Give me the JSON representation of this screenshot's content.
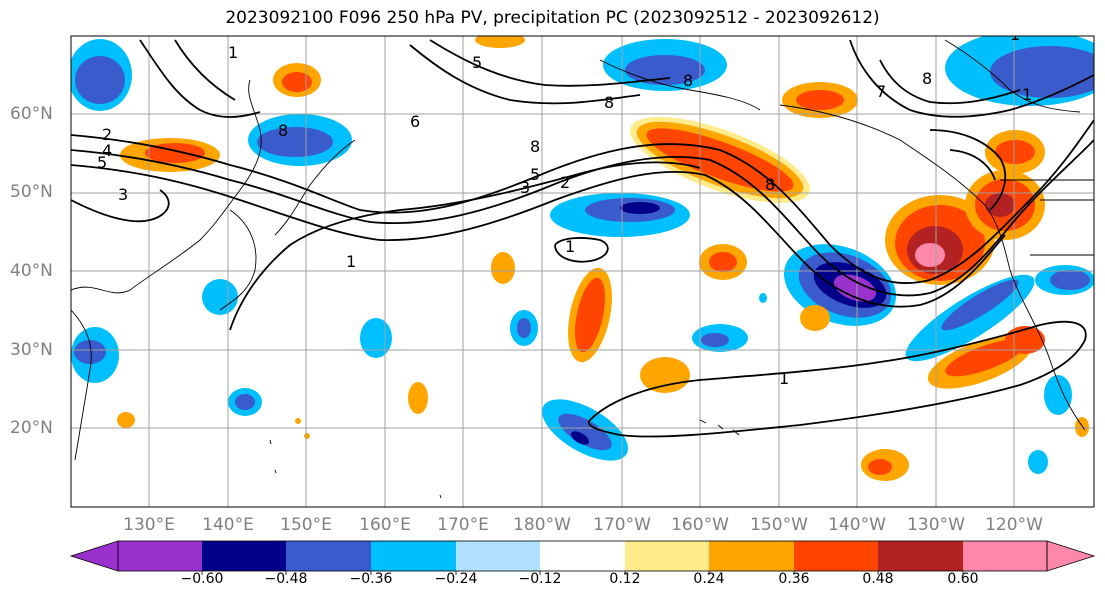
{
  "title": "2023092100 F096 250 hPa PV, precipitation PC (2023092512 - 2023092612)",
  "lat_labels": [
    "60°N",
    "50°N",
    "40°N",
    "30°N",
    "20°N"
  ],
  "lon_labels": [
    "130°E",
    "140°E",
    "150°E",
    "160°E",
    "170°E",
    "180°W",
    "170°W",
    "160°W",
    "150°W",
    "140°W",
    "130°W",
    "120°W"
  ],
  "colorbar": {
    "colors": [
      "#9932CC",
      "#00008B",
      "#3A5BCC",
      "#00BFFF",
      "#B0E2FF",
      "#FFFFFF",
      "#FFEB8A",
      "#FFA500",
      "#FF4500",
      "#B22222",
      "#FF88AA"
    ],
    "tick_labels": [
      "−0.60",
      "−0.48",
      "−0.36",
      "−0.24",
      "−0.12",
      "0.12",
      "0.24",
      "0.36",
      "0.48",
      "0.60"
    ]
  },
  "contour_labels": [
    "1",
    "2",
    "4",
    "5",
    "3",
    "8",
    "1",
    "6",
    "5",
    "8",
    "8",
    "7",
    "8",
    "5",
    "3",
    "2",
    "8",
    "1",
    "1",
    "1",
    "1",
    "8"
  ]
}
